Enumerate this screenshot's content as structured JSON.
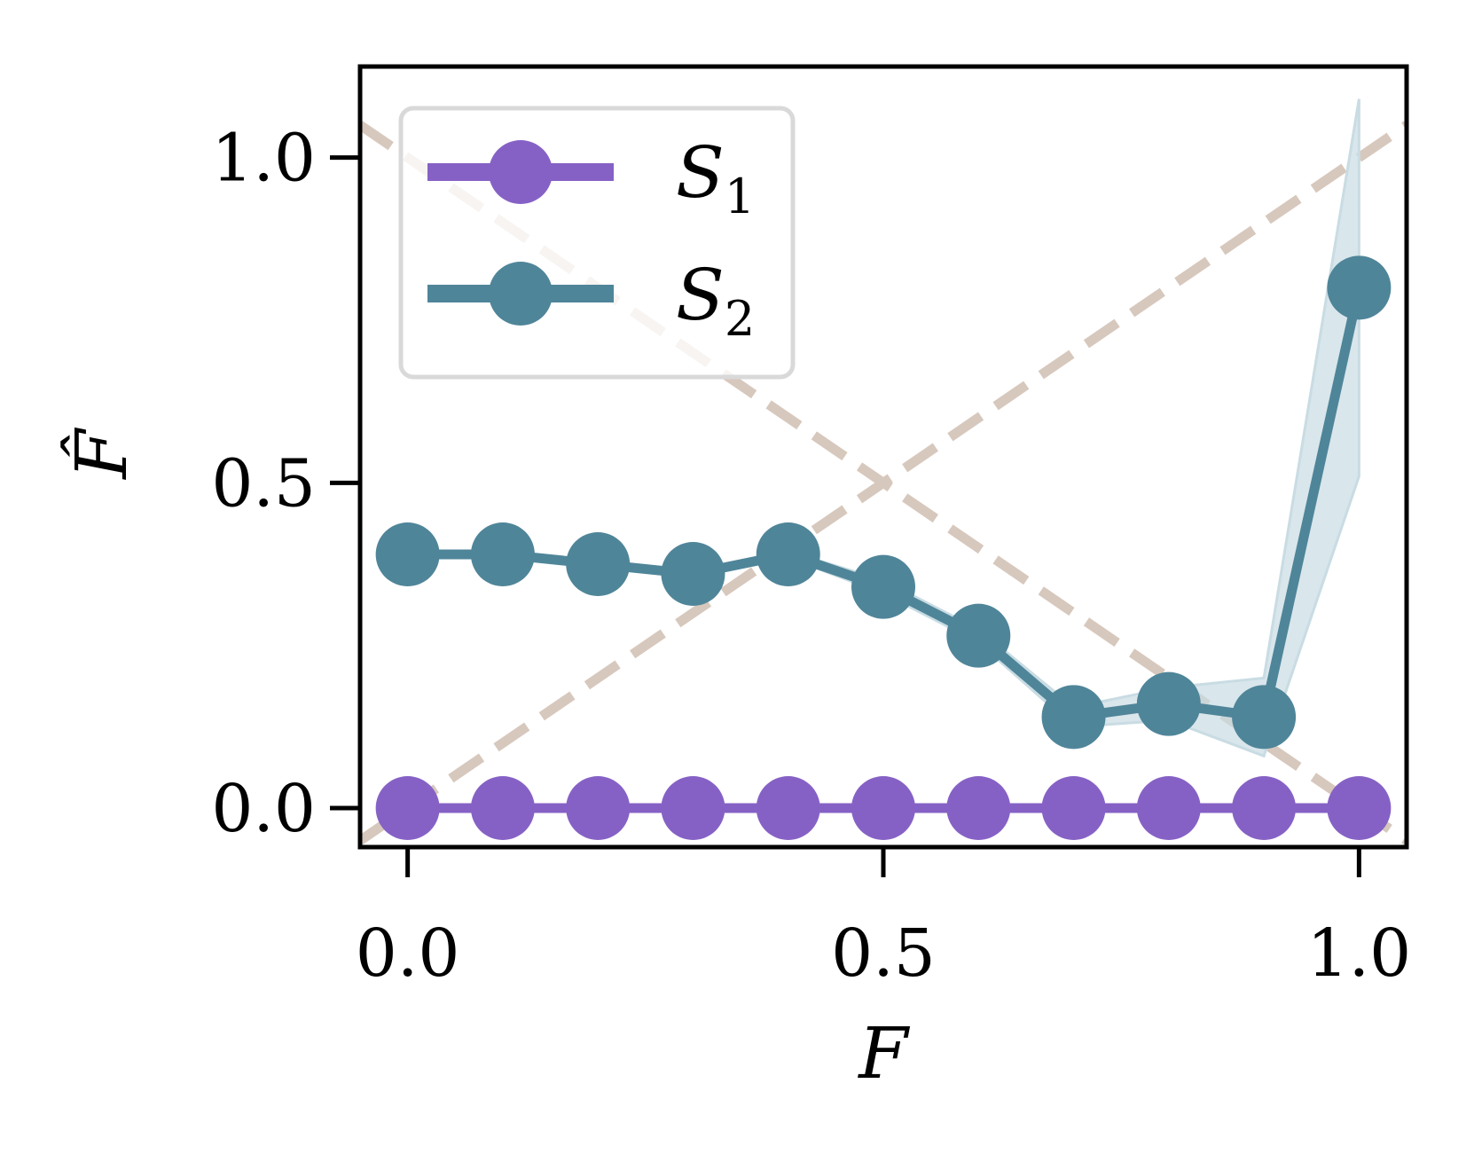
{
  "chart_data": {
    "type": "line",
    "title": "",
    "xlabel": "F",
    "ylabel": "F̂",
    "xlim": [
      -0.05,
      1.05
    ],
    "ylim": [
      -0.06,
      1.14
    ],
    "xticks": [
      0.0,
      0.5,
      1.0
    ],
    "xtick_labels": [
      "0.0",
      "0.5",
      "1.0"
    ],
    "yticks": [
      0.0,
      0.5,
      1.0
    ],
    "ytick_labels": [
      "0.0",
      "0.5",
      "1.0"
    ],
    "grid": false,
    "legend_position": "top-left",
    "x": [
      0.0,
      0.1,
      0.2,
      0.3,
      0.4,
      0.5,
      0.6,
      0.7,
      0.8,
      0.9,
      1.0
    ],
    "series": [
      {
        "name": "S",
        "subscript": "1",
        "color": "#8661c5",
        "values": [
          0,
          0,
          0,
          0,
          0,
          0,
          0,
          0,
          0,
          0,
          0
        ]
      },
      {
        "name": "S",
        "subscript": "2",
        "color": "#4f8599",
        "values": [
          0.39,
          0.39,
          0.375,
          0.36,
          0.39,
          0.34,
          0.265,
          0.14,
          0.16,
          0.14,
          0.8
        ],
        "band_lower": [
          0.39,
          0.39,
          0.375,
          0.36,
          0.385,
          0.33,
          0.255,
          0.125,
          0.135,
          0.08,
          0.51
        ],
        "band_upper": [
          0.39,
          0.39,
          0.375,
          0.36,
          0.395,
          0.35,
          0.275,
          0.155,
          0.185,
          0.2,
          1.09
        ],
        "band_color": "#c9dce3"
      }
    ],
    "reference_lines": [
      {
        "name": "diagonal",
        "style": "dashed",
        "color": "#d7c8bd",
        "x": [
          -0.05,
          1.05
        ],
        "y": [
          -0.05,
          1.05
        ]
      },
      {
        "name": "anti-diagonal",
        "style": "dashed",
        "color": "#d7c8bd",
        "x": [
          -0.05,
          1.05
        ],
        "y": [
          1.05,
          -0.05
        ]
      }
    ]
  }
}
